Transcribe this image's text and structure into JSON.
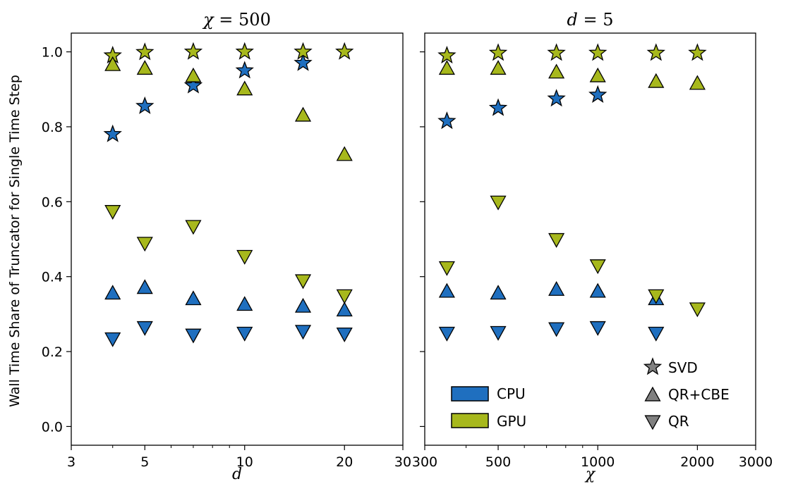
{
  "chart_data": [
    {
      "type": "scatter",
      "title": "χ = 500",
      "title_var": "χ",
      "title_rest": " = 500",
      "xlabel": "d",
      "ylabel": "Wall Time Share of Truncator for Single Time Step",
      "xscale": "log",
      "xlim": [
        3,
        30
      ],
      "ylim": [
        -0.05,
        1.05
      ],
      "xticks": [
        3,
        5,
        10,
        20,
        30
      ],
      "xtick_labels": [
        "3",
        "5",
        "10",
        "20",
        "30"
      ],
      "yticks": [
        0.0,
        0.2,
        0.4,
        0.6,
        0.8,
        1.0
      ],
      "ytick_labels": [
        "0.0",
        "0.2",
        "0.4",
        "0.6",
        "0.8",
        "1.0"
      ],
      "series": [
        {
          "device": "CPU",
          "method": "SVD",
          "x": [
            4,
            5,
            7,
            10,
            15
          ],
          "y": [
            0.78,
            0.855,
            0.91,
            0.95,
            0.97
          ]
        },
        {
          "device": "GPU",
          "method": "SVD",
          "x": [
            4,
            5,
            7,
            10,
            15,
            20
          ],
          "y": [
            0.99,
            0.999,
            1.0,
            1.0,
            1.0,
            1.0
          ]
        },
        {
          "device": "CPU",
          "method": "QR+CBE",
          "x": [
            4,
            5,
            7,
            10,
            15,
            20
          ],
          "y": [
            0.355,
            0.37,
            0.34,
            0.325,
            0.32,
            0.31
          ]
        },
        {
          "device": "GPU",
          "method": "QR+CBE",
          "x": [
            4,
            5,
            7,
            10,
            15,
            20
          ],
          "y": [
            0.965,
            0.955,
            0.935,
            0.9,
            0.83,
            0.725
          ]
        },
        {
          "device": "CPU",
          "method": "QR",
          "x": [
            4,
            5,
            7,
            10,
            15,
            20
          ],
          "y": [
            0.235,
            0.265,
            0.245,
            0.25,
            0.255,
            0.248
          ]
        },
        {
          "device": "GPU",
          "method": "QR",
          "x": [
            4,
            5,
            7,
            10,
            15,
            20
          ],
          "y": [
            0.575,
            0.49,
            0.535,
            0.455,
            0.39,
            0.35
          ]
        }
      ]
    },
    {
      "type": "scatter",
      "title": "d = 5",
      "title_var": "d",
      "title_rest": " = 5",
      "xlabel": "χ",
      "ylabel": "",
      "xscale": "log",
      "xlim": [
        300,
        3000
      ],
      "ylim": [
        -0.05,
        1.05
      ],
      "xticks": [
        300,
        500,
        1000,
        2000,
        3000
      ],
      "xtick_labels": [
        "300",
        "500",
        "1000",
        "2000",
        "3000"
      ],
      "yticks": [
        0.0,
        0.2,
        0.4,
        0.6,
        0.8,
        1.0
      ],
      "series": [
        {
          "device": "CPU",
          "method": "SVD",
          "x": [
            350,
            500,
            750,
            1000
          ],
          "y": [
            0.815,
            0.85,
            0.875,
            0.885
          ]
        },
        {
          "device": "GPU",
          "method": "SVD",
          "x": [
            350,
            500,
            750,
            1000,
            1500,
            2000
          ],
          "y": [
            0.99,
            0.997,
            0.997,
            0.997,
            0.997,
            0.997
          ]
        },
        {
          "device": "CPU",
          "method": "QR+CBE",
          "x": [
            350,
            500,
            750,
            1000,
            1500
          ],
          "y": [
            0.36,
            0.355,
            0.365,
            0.36,
            0.34
          ]
        },
        {
          "device": "GPU",
          "method": "QR+CBE",
          "x": [
            350,
            500,
            750,
            1000,
            1500,
            2000
          ],
          "y": [
            0.955,
            0.955,
            0.945,
            0.935,
            0.92,
            0.915
          ]
        },
        {
          "device": "CPU",
          "method": "QR",
          "x": [
            350,
            500,
            750,
            1000,
            1500
          ],
          "y": [
            0.25,
            0.252,
            0.262,
            0.265,
            0.25
          ]
        },
        {
          "device": "GPU",
          "method": "QR",
          "x": [
            350,
            500,
            750,
            1000,
            1500,
            2000
          ],
          "y": [
            0.425,
            0.6,
            0.5,
            0.43,
            0.35,
            0.315
          ]
        }
      ]
    }
  ],
  "legend": {
    "devices": [
      {
        "label": "CPU",
        "color": "#1f6fbf"
      },
      {
        "label": "GPU",
        "color": "#a7b81c"
      }
    ],
    "methods": [
      {
        "label": "SVD",
        "marker": "star"
      },
      {
        "label": "QR+CBE",
        "marker": "triangle-up"
      },
      {
        "label": "QR",
        "marker": "triangle-down"
      }
    ],
    "marker_legend_color": "#808080",
    "placement": "lower-right of right panel"
  }
}
